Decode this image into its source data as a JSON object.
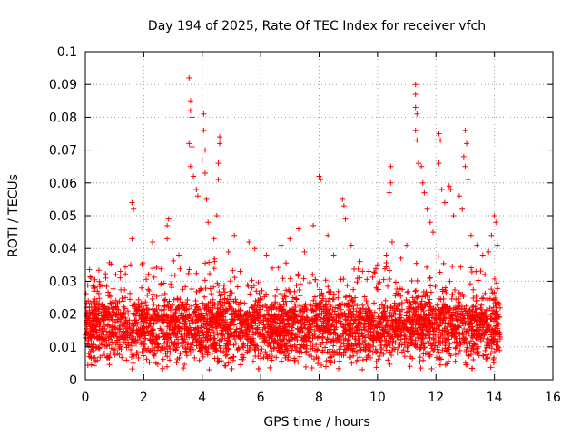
{
  "chart_data": {
    "type": "scatter",
    "title": "Day 194 of 2025, Rate Of TEC Index for receiver vfch",
    "xlabel": "GPS time / hours",
    "ylabel": "ROTI / TECUs",
    "xlim": [
      0,
      16
    ],
    "ylim": [
      0,
      0.1
    ],
    "xticks": [
      "0",
      "2",
      "4",
      "6",
      "8",
      "10",
      "12",
      "14",
      "16"
    ],
    "yticks": [
      "0",
      "0.01",
      "0.02",
      "0.03",
      "0.04",
      "0.05",
      "0.06",
      "0.07",
      "0.08",
      "0.09",
      "0.1"
    ],
    "grid": true,
    "marker": "+",
    "color": "#ff0000",
    "data_extent_x": [
      0,
      14.2
    ],
    "baseline_range": [
      0.005,
      0.025
    ],
    "series": [
      {
        "name": "ROTI",
        "points": [
          [
            0.1,
            0.024
          ],
          [
            0.3,
            0.027
          ],
          [
            0.5,
            0.029
          ],
          [
            0.7,
            0.031
          ],
          [
            1.2,
            0.033
          ],
          [
            1.55,
            0.035
          ],
          [
            1.6,
            0.054
          ],
          [
            1.65,
            0.052
          ],
          [
            1.6,
            0.043
          ],
          [
            2.3,
            0.042
          ],
          [
            2.8,
            0.047
          ],
          [
            2.85,
            0.049
          ],
          [
            2.8,
            0.043
          ],
          [
            3.2,
            0.038
          ],
          [
            3.55,
            0.092
          ],
          [
            3.6,
            0.085
          ],
          [
            3.6,
            0.082
          ],
          [
            3.65,
            0.08
          ],
          [
            3.55,
            0.072
          ],
          [
            3.65,
            0.071
          ],
          [
            3.6,
            0.065
          ],
          [
            3.7,
            0.062
          ],
          [
            3.8,
            0.058
          ],
          [
            3.85,
            0.056
          ],
          [
            4.05,
            0.081
          ],
          [
            4.05,
            0.076
          ],
          [
            4.1,
            0.07
          ],
          [
            4.0,
            0.067
          ],
          [
            4.1,
            0.063
          ],
          [
            4.15,
            0.055
          ],
          [
            4.2,
            0.048
          ],
          [
            4.4,
            0.043
          ],
          [
            4.6,
            0.074
          ],
          [
            4.6,
            0.072
          ],
          [
            4.55,
            0.066
          ],
          [
            4.55,
            0.061
          ],
          [
            4.5,
            0.05
          ],
          [
            4.9,
            0.039
          ],
          [
            5.1,
            0.044
          ],
          [
            5.3,
            0.033
          ],
          [
            5.6,
            0.042
          ],
          [
            5.8,
            0.04
          ],
          [
            6.2,
            0.038
          ],
          [
            6.4,
            0.034
          ],
          [
            6.7,
            0.041
          ],
          [
            7.0,
            0.043
          ],
          [
            7.3,
            0.046
          ],
          [
            7.5,
            0.039
          ],
          [
            7.8,
            0.047
          ],
          [
            8.0,
            0.062
          ],
          [
            8.05,
            0.061
          ],
          [
            8.3,
            0.044
          ],
          [
            8.5,
            0.038
          ],
          [
            8.8,
            0.055
          ],
          [
            8.85,
            0.053
          ],
          [
            8.9,
            0.049
          ],
          [
            9.1,
            0.041
          ],
          [
            9.4,
            0.036
          ],
          [
            9.7,
            0.033
          ],
          [
            10.0,
            0.035
          ],
          [
            10.3,
            0.038
          ],
          [
            10.45,
            0.065
          ],
          [
            10.45,
            0.06
          ],
          [
            10.4,
            0.057
          ],
          [
            10.5,
            0.042
          ],
          [
            10.8,
            0.037
          ],
          [
            11.0,
            0.041
          ],
          [
            11.3,
            0.09
          ],
          [
            11.3,
            0.087
          ],
          [
            11.3,
            0.083
          ],
          [
            11.35,
            0.081
          ],
          [
            11.3,
            0.076
          ],
          [
            11.35,
            0.073
          ],
          [
            11.4,
            0.066
          ],
          [
            11.5,
            0.065
          ],
          [
            11.55,
            0.06
          ],
          [
            11.6,
            0.057
          ],
          [
            11.7,
            0.052
          ],
          [
            11.8,
            0.048
          ],
          [
            11.9,
            0.045
          ],
          [
            12.1,
            0.075
          ],
          [
            12.15,
            0.073
          ],
          [
            12.1,
            0.066
          ],
          [
            12.2,
            0.058
          ],
          [
            12.3,
            0.054
          ],
          [
            12.45,
            0.059
          ],
          [
            12.5,
            0.058
          ],
          [
            12.6,
            0.05
          ],
          [
            12.8,
            0.056
          ],
          [
            12.9,
            0.052
          ],
          [
            13.0,
            0.076
          ],
          [
            13.05,
            0.072
          ],
          [
            12.95,
            0.068
          ],
          [
            13.0,
            0.065
          ],
          [
            13.1,
            0.061
          ],
          [
            13.2,
            0.044
          ],
          [
            13.4,
            0.041
          ],
          [
            13.6,
            0.038
          ],
          [
            13.8,
            0.039
          ],
          [
            13.9,
            0.044
          ],
          [
            14.0,
            0.05
          ],
          [
            14.05,
            0.048
          ],
          [
            14.1,
            0.041
          ]
        ]
      }
    ]
  }
}
